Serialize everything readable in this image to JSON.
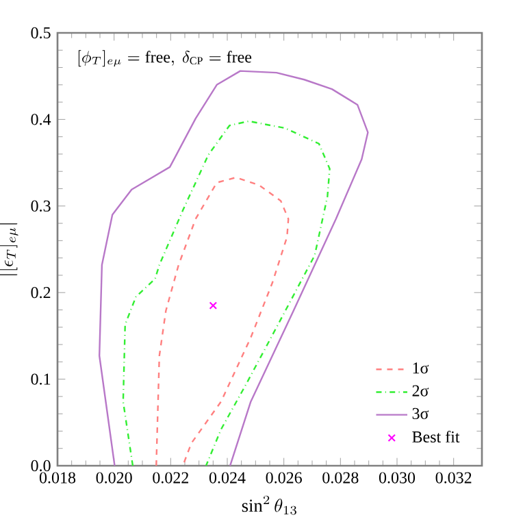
{
  "chart_data": {
    "type": "line",
    "xlabel": "\\sin^2\\theta_{13}",
    "ylabel": "|[\\epsilon_T]_{e\\mu}|",
    "annotations": [
      "[\\phi_T]_{e\\mu} = \\mathrm{free},\\ \\delta_{\\mathrm{CP}} = \\mathrm{free}"
    ],
    "xlim": [
      0.018,
      0.033
    ],
    "ylim": [
      0,
      0.5
    ],
    "xticks": [
      0.018,
      {
        "value": 0.02,
        "label": "0.020"
      },
      0.022,
      0.024,
      0.026,
      0.028,
      {
        "value": 0.03,
        "label": "0.030"
      },
      0.032
    ],
    "yticks": [
      {
        "value": 0,
        "label": "0.0"
      },
      0.1,
      0.2,
      0.3,
      0.4,
      0.5
    ],
    "legend": "bottom right",
    "grid": false,
    "series": [
      {
        "name": "1σ",
        "color": "#ff8080",
        "line_style": "dashed",
        "x": [
          0.02149,
          0.0216,
          0.02183,
          0.02228,
          0.02288,
          0.02363,
          0.02431,
          0.02513,
          0.02589,
          0.02616,
          0.02611,
          0.02559,
          0.02483,
          0.02378,
          0.02273,
          0.02243
        ],
        "values": [
          0,
          0.127,
          0.179,
          0.232,
          0.285,
          0.327,
          0.333,
          0.324,
          0.306,
          0.285,
          0.264,
          0.211,
          0.148,
          0.074,
          0.026,
          0
        ]
      },
      {
        "name": "2σ",
        "color": "#33ee33",
        "line_style": "dashdot",
        "x": [
          0.02066,
          0.02032,
          0.02039,
          0.02077,
          0.02145,
          0.0216,
          0.02243,
          0.02333,
          0.02408,
          0.02476,
          0.02604,
          0.02724,
          0.02762,
          0.02754,
          0.02709,
          0.02589,
          0.02468,
          0.02378,
          0.02325
        ],
        "values": [
          0,
          0.074,
          0.163,
          0.195,
          0.216,
          0.232,
          0.295,
          0.359,
          0.393,
          0.398,
          0.39,
          0.372,
          0.343,
          0.311,
          0.243,
          0.169,
          0.095,
          0.042,
          0
        ]
      },
      {
        "name": "3σ",
        "color": "#b878c8",
        "line_style": "solid",
        "x": [
          0.02002,
          0.01948,
          0.01957,
          0.01994,
          0.02062,
          0.02197,
          0.02228,
          0.02288,
          0.02363,
          0.02446,
          0.02574,
          0.02672,
          0.0277,
          0.0286,
          0.02897,
          0.02875,
          0.02784,
          0.02634,
          0.02483,
          0.0241
        ],
        "values": [
          0,
          0.127,
          0.232,
          0.29,
          0.319,
          0.345,
          0.364,
          0.401,
          0.44,
          0.456,
          0.454,
          0.446,
          0.435,
          0.417,
          0.385,
          0.354,
          0.285,
          0.179,
          0.074,
          0
        ]
      },
      {
        "name": "Best fit",
        "type": "scatter",
        "marker": "cross",
        "color": "#ff00ff",
        "x": [
          0.0235
        ],
        "values": [
          0.185
        ]
      }
    ]
  }
}
